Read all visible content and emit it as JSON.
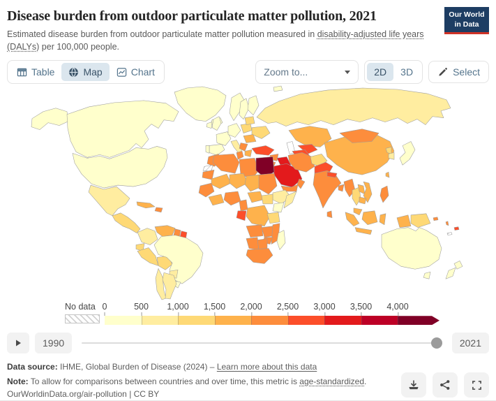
{
  "header": {
    "title": "Disease burden from outdoor particulate matter pollution, 2021",
    "subtitle_prefix": "Estimated disease burden from outdoor particulate matter pollution measured in ",
    "subtitle_link": "disability-adjusted life years (DALYs)",
    "subtitle_suffix": " per 100,000 people.",
    "logo_line1": "Our World",
    "logo_line2": "in Data"
  },
  "toolbar": {
    "tabs": [
      {
        "label": "Table"
      },
      {
        "label": "Map"
      },
      {
        "label": "Chart"
      }
    ],
    "zoom_dropdown_placeholder": "Zoom to...",
    "projection_2d": "2D",
    "projection_3d": "3D",
    "select_label": "Select"
  },
  "icons": {
    "table": "grid-table",
    "map": "globe",
    "chart": "line-chart",
    "zoom_dropdown": "caret-down",
    "select": "pencil",
    "play": "play-triangle",
    "download": "arrow-down-to-tray",
    "share": "share-nodes",
    "fullscreen": "corner-brackets"
  },
  "legend": {
    "no_data_label": "No data"
  },
  "timeline": {
    "start_year": "1990",
    "end_year": "2021"
  },
  "footer": {
    "source_label": "Data source:",
    "source_text": " IHME, Global Burden of Disease (2024) – ",
    "source_link": "Learn more about this data",
    "note_label": "Note:",
    "note_text": " To allow for comparisons between countries and over time, this metric is ",
    "note_link": "age-standardized",
    "note_suffix": ".",
    "attribution": "OurWorldinData.org/air-pollution | CC BY"
  },
  "colors": {
    "active_tab_bg": "#dbe6ee",
    "logo_bg": "#1d3d63",
    "logo_accent": "#cf3327",
    "ui_text": "#54748c",
    "slider_handle": "#9b9b9b"
  },
  "chart_data": {
    "type": "choropleth",
    "title": "Disease burden from outdoor particulate matter pollution, 2021",
    "unit": "DALYs per 100,000 people (age-standardized)",
    "year": 2021,
    "legend_ticks": [
      "0",
      "500",
      "1,000",
      "1,500",
      "2,000",
      "2,500",
      "3,000",
      "3,500",
      "4,000"
    ],
    "bins": [
      "0-500",
      "500-1000",
      "1000-1500",
      "1500-2000",
      "2000-2500",
      "2500-3000",
      "3000-3500",
      "3500-4000",
      "4000+"
    ],
    "palette": {
      "0-500": "#ffffcc",
      "500-1000": "#ffeda0",
      "1000-1500": "#fed976",
      "1500-2000": "#feb24c",
      "2000-2500": "#fd8d3c",
      "2500-3000": "#fc4e2a",
      "3000-3500": "#e31a1c",
      "3500-4000": "#bd0026",
      "4000+": "#800026",
      "sea": "#ffffff"
    },
    "countries": {
      "greenland": "0-500",
      "iceland": "0-500",
      "alaska": "0-500",
      "canada": "0-500",
      "usa": "0-500",
      "brazil": "0-500",
      "uruguay": "0-500",
      "norway": "0-500",
      "sweden": "0-500",
      "finland": "0-500",
      "uk": "0-500",
      "ireland": "0-500",
      "france": "0-500",
      "spain": "0-500",
      "portugal": "0-500",
      "germany": "0-500",
      "japan": "0-500",
      "australia": "0-500",
      "tasmania": "0-500",
      "new-zealand-north": "0-500",
      "new-zealand-south": "0-500",
      "madagascar": "0-500",
      "kenya": "0-500",
      "svalbard": "0-500",
      "mexico": "500-1000",
      "colombia": "500-1000",
      "chile": "500-1000",
      "argentina": "500-1000",
      "paraguay": "500-1000",
      "italy": "500-1000",
      "russia": "500-1000",
      "ethiopia": "500-1000",
      "somalia": "500-1000",
      "south-korea": "500-1000",
      "central-america": "1000-1500",
      "ecuador": "1000-1500",
      "peru": "1000-1500",
      "bolivia": "1000-1500",
      "poland": "1000-1500",
      "belarus": "1000-1500",
      "ukraine": "1000-1500",
      "tanzania": "1000-1500",
      "south-sudan": "1000-1500",
      "afghanistan": "1000-1500",
      "thailand": "1000-1500",
      "north-korea": "1000-1500",
      "papua-new-guinea": "1000-1500",
      "cuba": "1500-2000",
      "venezuela": "1500-2000",
      "romania": "1500-2000",
      "greece": "1500-2000",
      "kazakhstan": "1500-2000",
      "china": "1500-2000",
      "mali": "1500-2000",
      "niger": "1500-2000",
      "chad": "1500-2000",
      "central-african-republic": "1500-2000",
      "drc": "1500-2000",
      "ivory-coast-ghana": "1500-2000",
      "laos": "1500-2000",
      "vietnam": "1500-2000",
      "cambodia": "1500-2000",
      "malaysia": "1500-2000",
      "sumatra": "1500-2000",
      "java": "1500-2000",
      "borneo": "1500-2000",
      "sulawesi": "1500-2000",
      "west-papua": "1500-2000",
      "taiwan": "1500-2000",
      "hispaniola": "2000-2500",
      "guyana": "2000-2500",
      "morocco": "2000-2500",
      "mauritania": "2000-2500",
      "algeria": "2000-2500",
      "tunisia": "2000-2500",
      "libya": "2000-2500",
      "sudan": "2000-2500",
      "senegal": "2000-2500",
      "nigeria": "2000-2500",
      "cameroon": "2000-2500",
      "angola": "2000-2500",
      "zambia": "2000-2500",
      "mozambique": "2000-2500",
      "zimbabwe": "2000-2500",
      "namibia": "2000-2500",
      "botswana": "2000-2500",
      "south-africa": "2000-2500",
      "jordan": "2000-2500",
      "syria": "2000-2500",
      "yemen": "2000-2500",
      "oman": "2000-2500",
      "iran": "2000-2500",
      "india": "2000-2500",
      "bangladesh": "2000-2500",
      "sri-lanka": "2000-2500",
      "myanmar": "2000-2500",
      "mongolia": "2000-2500",
      "philippines": "2000-2500",
      "serbia": "2000-2500",
      "vanuatu": "2000-2500",
      "solomon-islands": "2000-2500",
      "suriname": "2500-3000",
      "gabon": "2500-3000",
      "turkey": "2500-3000",
      "turkmenistan": "2500-3000",
      "uzbekistan": "2500-3000",
      "pakistan": "2500-3000",
      "nepal": "2500-3000",
      "fiji": "2500-3000",
      "iraq": "3000-3500",
      "saudi-arabia": "3000-3500",
      "egypt": "4000+",
      "western-sahara": "no_data",
      "new-caledonia": "no_data",
      "caspian-sea": "sea"
    }
  }
}
